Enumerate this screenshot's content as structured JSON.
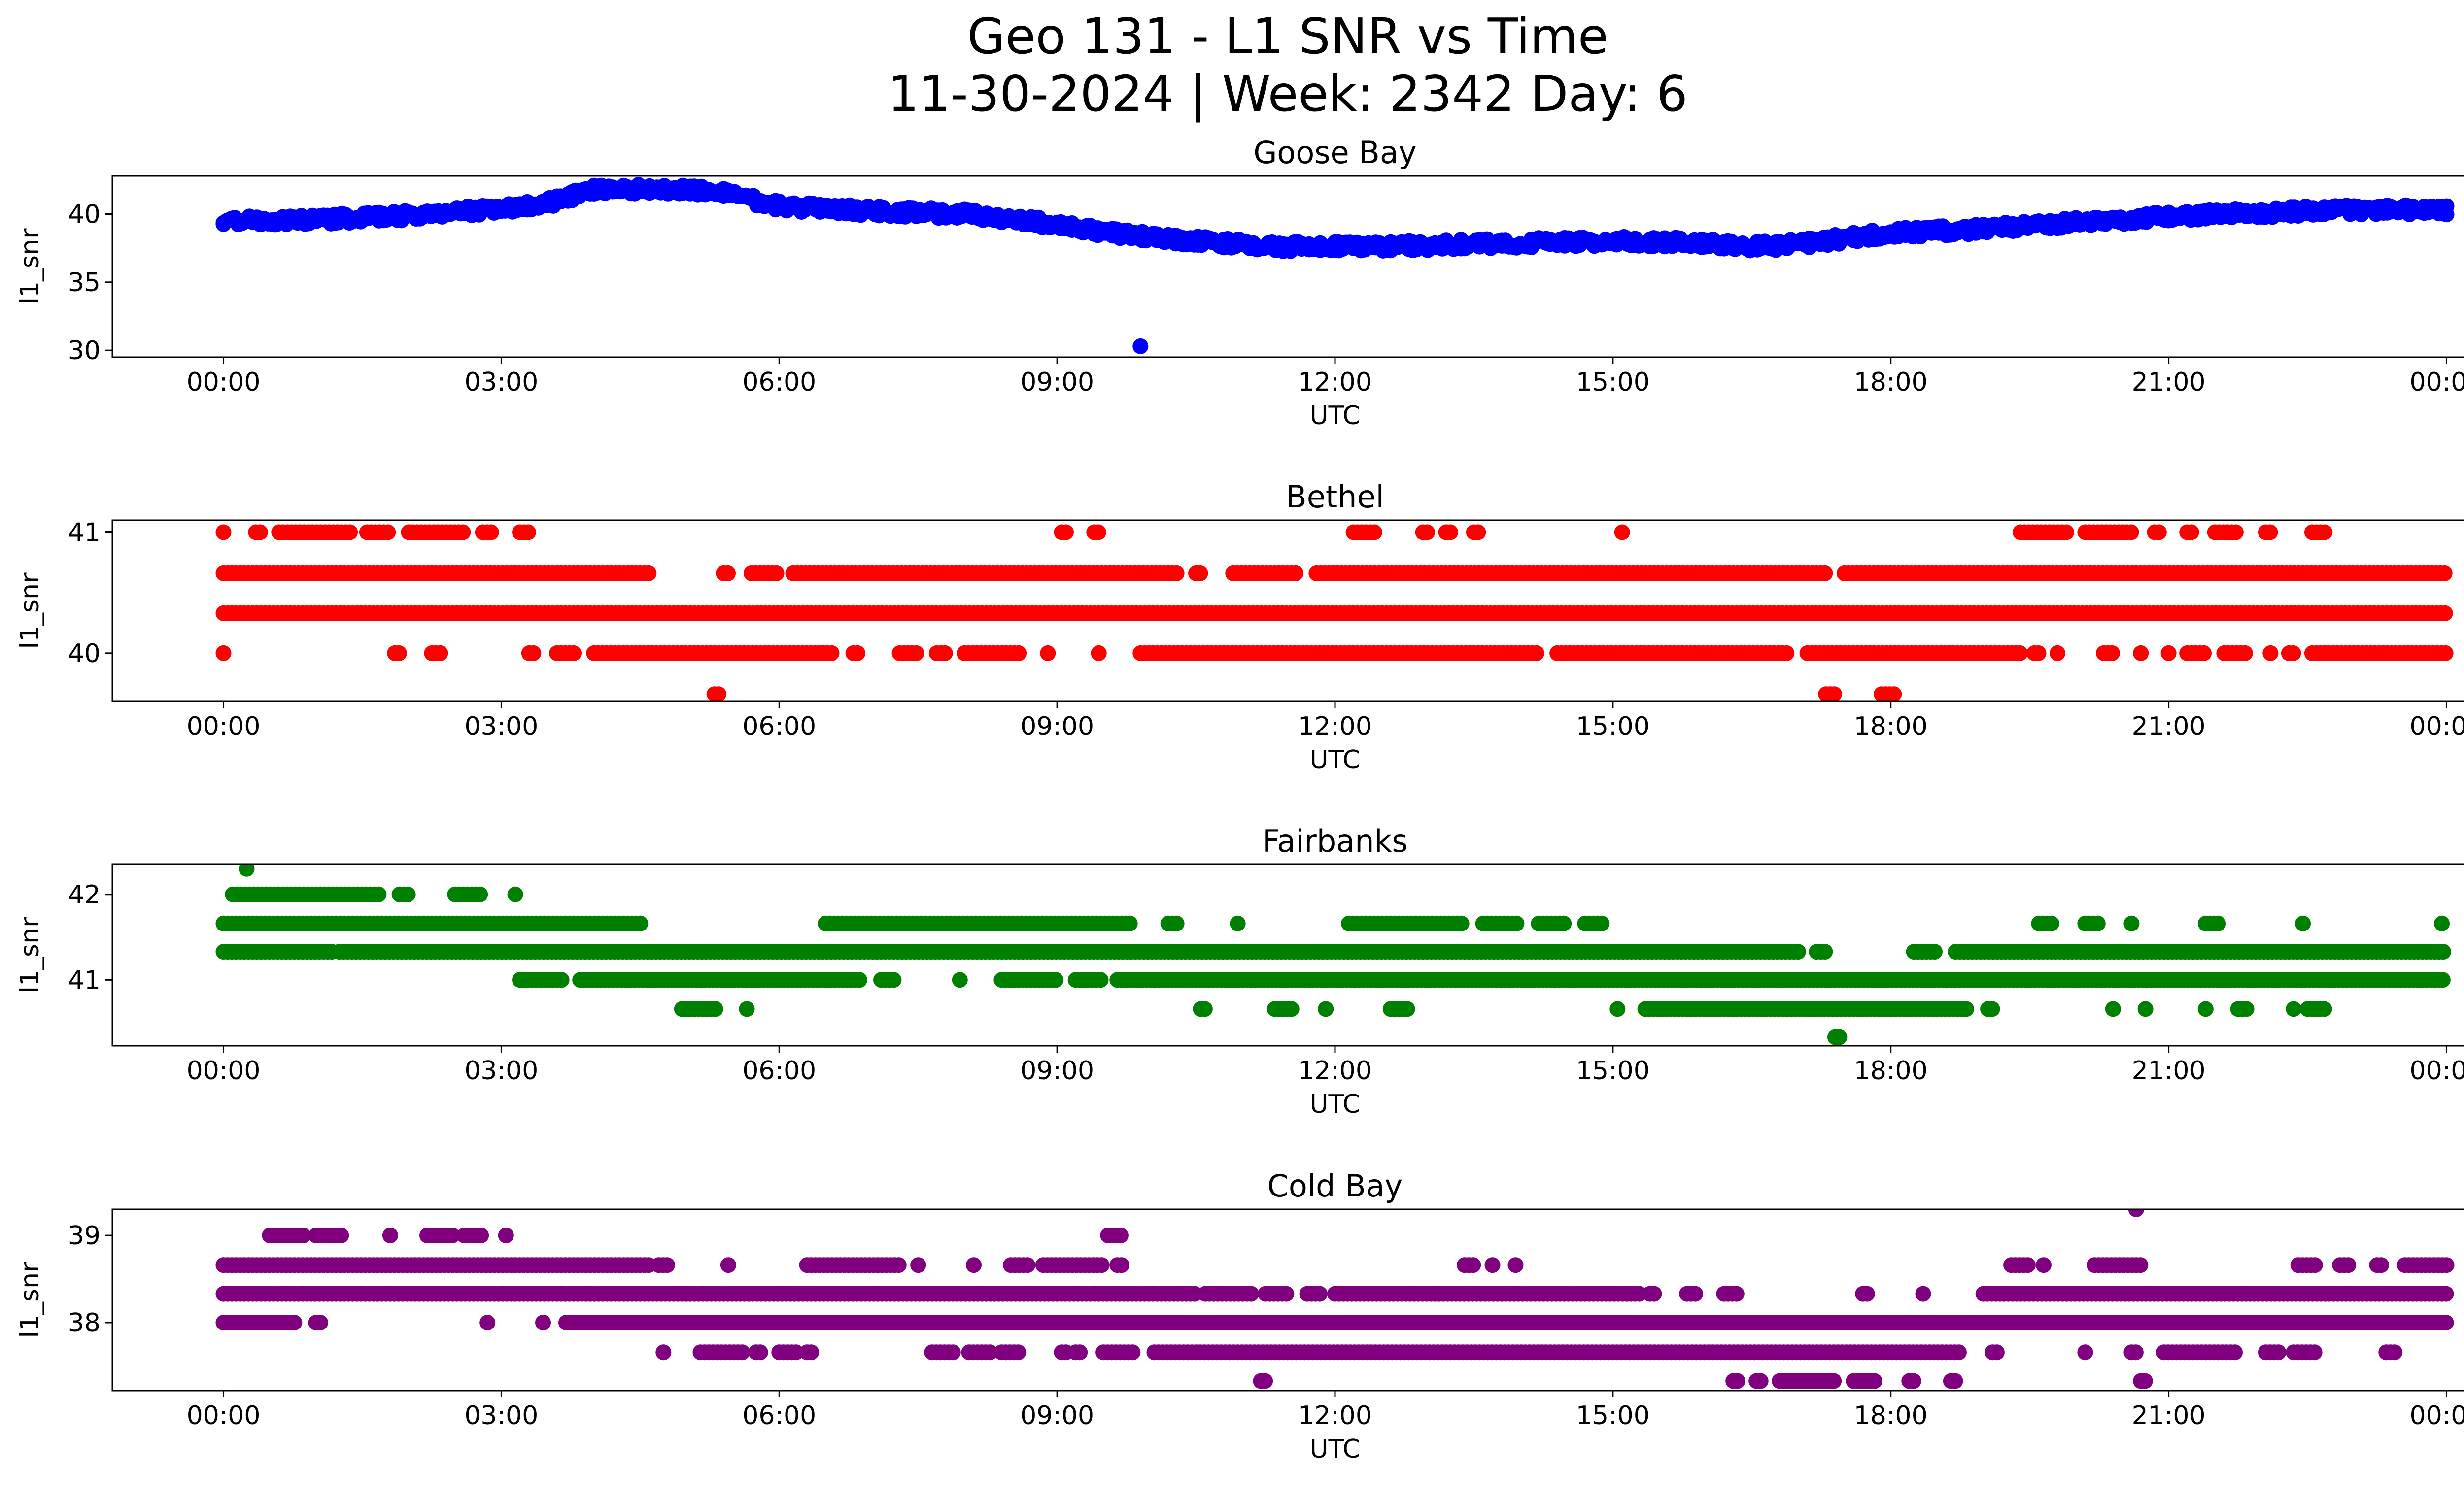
{
  "figure": {
    "title_line1": "Geo 131 - L1 SNR vs Time",
    "title_line2": "11-30-2024 | Week: 2342 Day: 6"
  },
  "chart_data": [
    {
      "type": "scatter",
      "title": "Goose Bay",
      "xlabel": "UTC",
      "ylabel": "l1_snr",
      "color": "#0000ff",
      "xticks": [
        "00:00",
        "03:00",
        "06:00",
        "09:00",
        "12:00",
        "15:00",
        "18:00",
        "21:00",
        "00:00"
      ],
      "xlim_hours": [
        -1.2,
        25.2
      ],
      "ylim": [
        29.5,
        42.8
      ],
      "yticks": [
        30,
        35,
        40
      ],
      "trend": [
        [
          0,
          39.5
        ],
        [
          1,
          39.6
        ],
        [
          2,
          39.9
        ],
        [
          3,
          40.4
        ],
        [
          3.5,
          40.8
        ],
        [
          4,
          41.8
        ],
        [
          5,
          41.8
        ],
        [
          5.4,
          41.5
        ],
        [
          6,
          40.6
        ],
        [
          7,
          40.2
        ],
        [
          8,
          40.0
        ],
        [
          8.7,
          39.5
        ],
        [
          9.5,
          38.7
        ],
        [
          10.5,
          38.0
        ],
        [
          11.5,
          37.6
        ],
        [
          12.5,
          37.6
        ],
        [
          13.5,
          37.8
        ],
        [
          15,
          38.0
        ],
        [
          16,
          37.9
        ],
        [
          16.5,
          37.6
        ],
        [
          17,
          37.8
        ],
        [
          17.5,
          38.2
        ],
        [
          18,
          38.6
        ],
        [
          19,
          38.9
        ],
        [
          20,
          39.4
        ],
        [
          21,
          39.8
        ],
        [
          22,
          40.1
        ],
        [
          23,
          40.3
        ],
        [
          24,
          40.3
        ]
      ],
      "spread": 0.7,
      "outliers": [
        [
          9.9,
          30.3
        ]
      ]
    },
    {
      "type": "scatter",
      "title": "Bethel",
      "xlabel": "UTC",
      "ylabel": "l1_snr",
      "color": "#ff0000",
      "xticks": [
        "00:00",
        "03:00",
        "06:00",
        "09:00",
        "12:00",
        "15:00",
        "18:00",
        "21:00",
        "00:00"
      ],
      "xlim_hours": [
        -1.2,
        25.2
      ],
      "ylim": [
        39.6,
        41.1
      ],
      "yticks": [
        40,
        41
      ],
      "levels": [
        {
          "y": 41.0,
          "segments": [
            [
              0,
              0
            ],
            [
              0.35,
              0.4
            ],
            [
              0.6,
              1.4
            ],
            [
              1.55,
              1.8
            ],
            [
              2.0,
              2.6
            ],
            [
              2.8,
              2.9
            ],
            [
              3.2,
              3.3
            ],
            [
              9.05,
              9.1
            ],
            [
              9.4,
              9.45
            ],
            [
              12.2,
              12.45
            ],
            [
              12.95,
              13.0
            ],
            [
              13.2,
              13.25
            ],
            [
              13.5,
              13.55
            ],
            [
              15.1,
              15.1
            ],
            [
              19.4,
              19.9
            ],
            [
              20.1,
              20.6
            ],
            [
              20.85,
              20.9
            ],
            [
              21.2,
              21.25
            ],
            [
              21.5,
              21.75
            ],
            [
              22.05,
              22.1
            ],
            [
              22.55,
              22.7
            ]
          ],
          "dotRanges": []
        },
        {
          "y": 40.66,
          "segments": [
            [
              0,
              4.6
            ],
            [
              5.4,
              5.45
            ],
            [
              5.7,
              6.0
            ],
            [
              6.15,
              10.3
            ],
            [
              10.5,
              10.55
            ],
            [
              10.9,
              11.6
            ],
            [
              11.8,
              17.3
            ],
            [
              17.5,
              24
            ]
          ]
        },
        {
          "y": 40.33,
          "segments": [
            [
              0,
              24
            ]
          ]
        },
        {
          "y": 40.0,
          "segments": [
            [
              0,
              0
            ],
            [
              1.85,
              1.9
            ],
            [
              2.25,
              2.35
            ],
            [
              3.3,
              3.35
            ],
            [
              3.6,
              3.8
            ],
            [
              4.0,
              6.6
            ],
            [
              6.8,
              6.85
            ],
            [
              7.3,
              7.5
            ],
            [
              7.7,
              7.8
            ],
            [
              8.0,
              8.6
            ],
            [
              8.9,
              8.9
            ],
            [
              9.45,
              9.45
            ],
            [
              9.9,
              14.2
            ],
            [
              14.4,
              16.9
            ],
            [
              17.1,
              19.4
            ],
            [
              19.55,
              19.6
            ],
            [
              19.8,
              19.8
            ],
            [
              20.3,
              20.4
            ],
            [
              20.7,
              20.7
            ],
            [
              21.0,
              21.0
            ],
            [
              21.2,
              21.4
            ],
            [
              21.6,
              21.85
            ],
            [
              22.1,
              22.1
            ],
            [
              22.3,
              22.35
            ],
            [
              22.55,
              24
            ]
          ]
        },
        {
          "y": 39.66,
          "segments": [
            [
              5.3,
              5.35
            ],
            [
              17.3,
              17.4
            ],
            [
              17.9,
              18.05
            ]
          ]
        }
      ]
    },
    {
      "type": "scatter",
      "title": "Fairbanks",
      "xlabel": "UTC",
      "ylabel": "l1_snr",
      "color": "#008000",
      "xticks": [
        "00:00",
        "03:00",
        "06:00",
        "09:00",
        "12:00",
        "15:00",
        "18:00",
        "21:00",
        "00:00"
      ],
      "xlim_hours": [
        -1.2,
        25.2
      ],
      "ylim": [
        40.23,
        42.35
      ],
      "yticks": [
        41,
        42
      ],
      "levels": [
        {
          "y": 42.3,
          "segments": [
            [
              0.25,
              0.25
            ]
          ]
        },
        {
          "y": 42.0,
          "segments": [
            [
              0.1,
              1.7
            ],
            [
              1.9,
              2.0
            ],
            [
              2.5,
              2.8
            ],
            [
              3.15,
              3.15
            ]
          ]
        },
        {
          "y": 41.66,
          "segments": [
            [
              0,
              4.5
            ],
            [
              6.5,
              9.8
            ],
            [
              10.2,
              10.3
            ],
            [
              10.95,
              10.95
            ],
            [
              12.15,
              13.4
            ],
            [
              13.6,
              14.0
            ],
            [
              14.2,
              14.5
            ],
            [
              14.7,
              14.9
            ],
            [
              19.6,
              19.75
            ],
            [
              20.1,
              20.25
            ],
            [
              20.6,
              20.6
            ],
            [
              21.4,
              21.55
            ],
            [
              22.45,
              22.45
            ],
            [
              23.95,
              23.95
            ]
          ]
        },
        {
          "y": 41.33,
          "segments": [
            [
              0,
              1.2
            ],
            [
              1.25,
              17.0
            ],
            [
              17.2,
              17.3
            ],
            [
              18.25,
              18.5
            ],
            [
              18.7,
              24
            ]
          ]
        },
        {
          "y": 41.0,
          "segments": [
            [
              3.2,
              3.65
            ],
            [
              3.85,
              6.9
            ],
            [
              7.1,
              7.25
            ],
            [
              7.95,
              7.95
            ],
            [
              8.4,
              9.0
            ],
            [
              9.2,
              9.5
            ],
            [
              9.65,
              24
            ]
          ]
        },
        {
          "y": 40.66,
          "segments": [
            [
              4.95,
              5.35
            ],
            [
              5.65,
              5.65
            ],
            [
              10.55,
              10.6
            ],
            [
              11.35,
              11.55
            ],
            [
              11.9,
              11.9
            ],
            [
              12.6,
              12.8
            ],
            [
              15.05,
              15.05
            ],
            [
              15.35,
              18.85
            ],
            [
              19.05,
              19.1
            ],
            [
              20.4,
              20.4
            ],
            [
              20.75,
              20.75
            ],
            [
              21.4,
              21.4
            ],
            [
              21.75,
              21.85
            ],
            [
              22.35,
              22.35
            ],
            [
              22.5,
              22.7
            ]
          ]
        },
        {
          "y": 40.33,
          "segments": [
            [
              17.4,
              17.45
            ]
          ]
        }
      ]
    },
    {
      "type": "scatter",
      "title": "Cold Bay",
      "xlabel": "UTC",
      "ylabel": "l1_snr",
      "color": "#800080",
      "xticks": [
        "00:00",
        "03:00",
        "06:00",
        "09:00",
        "12:00",
        "15:00",
        "18:00",
        "21:00",
        "00:00"
      ],
      "xlim_hours": [
        -1.2,
        25.2
      ],
      "ylim": [
        37.22,
        39.3
      ],
      "yticks": [
        38,
        39
      ],
      "levels": [
        {
          "y": 39.3,
          "segments": [
            [
              20.65,
              20.65
            ]
          ]
        },
        {
          "y": 39.0,
          "segments": [
            [
              0.5,
              0.9
            ],
            [
              1.0,
              1.3
            ],
            [
              1.8,
              1.8
            ],
            [
              2.2,
              2.5
            ],
            [
              2.6,
              2.8
            ],
            [
              3.05,
              3.05
            ],
            [
              9.55,
              9.7
            ]
          ]
        },
        {
          "y": 38.66,
          "segments": [
            [
              0,
              4.6
            ],
            [
              4.7,
              4.8
            ],
            [
              5.45,
              5.45
            ],
            [
              6.3,
              7.3
            ],
            [
              7.5,
              7.5
            ],
            [
              8.1,
              8.1
            ],
            [
              8.5,
              8.7
            ],
            [
              8.85,
              9.5
            ],
            [
              9.65,
              9.7
            ],
            [
              13.4,
              13.5
            ],
            [
              13.7,
              13.7
            ],
            [
              13.95,
              13.95
            ],
            [
              19.3,
              19.5
            ],
            [
              19.65,
              19.65
            ],
            [
              20.2,
              20.7
            ],
            [
              22.4,
              22.6
            ],
            [
              22.85,
              22.95
            ],
            [
              23.25,
              23.3
            ],
            [
              23.55,
              24
            ]
          ]
        },
        {
          "y": 38.33,
          "segments": [
            [
              0,
              10.5
            ],
            [
              10.6,
              11.1
            ],
            [
              11.25,
              11.5
            ],
            [
              11.7,
              11.85
            ],
            [
              12.0,
              15.3
            ],
            [
              15.4,
              15.45
            ],
            [
              15.8,
              15.9
            ],
            [
              16.2,
              16.35
            ],
            [
              17.7,
              17.75
            ],
            [
              18.35,
              18.35
            ],
            [
              19.0,
              24
            ]
          ]
        },
        {
          "y": 38.0,
          "segments": [
            [
              0,
              0.8
            ],
            [
              1.0,
              1.05
            ],
            [
              2.85,
              2.85
            ],
            [
              3.45,
              3.45
            ],
            [
              3.7,
              24
            ]
          ]
        },
        {
          "y": 37.66,
          "segments": [
            [
              4.75,
              4.75
            ],
            [
              5.15,
              5.6
            ],
            [
              5.75,
              5.8
            ],
            [
              6.0,
              6.2
            ],
            [
              6.3,
              6.35
            ],
            [
              7.65,
              7.9
            ],
            [
              8.05,
              8.3
            ],
            [
              8.4,
              8.6
            ],
            [
              9.05,
              9.1
            ],
            [
              9.2,
              9.25
            ],
            [
              9.5,
              9.85
            ],
            [
              10.05,
              18.75
            ],
            [
              19.1,
              19.15
            ],
            [
              20.1,
              20.1
            ],
            [
              20.6,
              20.65
            ],
            [
              20.95,
              21.75
            ],
            [
              22.05,
              22.2
            ],
            [
              22.35,
              22.6
            ],
            [
              23.35,
              23.45
            ]
          ]
        },
        {
          "y": 37.33,
          "segments": [
            [
              11.2,
              11.25
            ],
            [
              16.3,
              16.35
            ],
            [
              16.55,
              16.6
            ],
            [
              16.8,
              17.4
            ],
            [
              17.6,
              17.85
            ],
            [
              18.2,
              18.25
            ],
            [
              18.65,
              18.7
            ],
            [
              20.7,
              20.75
            ]
          ]
        }
      ]
    }
  ]
}
